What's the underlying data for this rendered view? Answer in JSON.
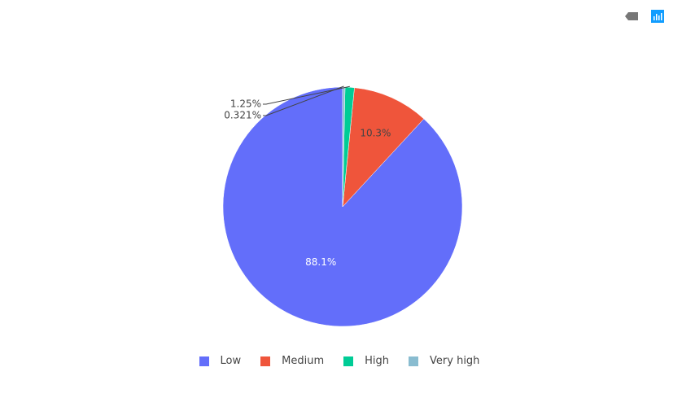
{
  "modebar": {
    "icons": [
      "tag-icon",
      "plotly-chart-icon"
    ]
  },
  "chart_data": {
    "type": "pie",
    "labels": [
      "Low",
      "Medium",
      "High",
      "Very high"
    ],
    "values": [
      88.1,
      10.3,
      1.25,
      0.321
    ],
    "text": [
      "88.1%",
      "10.3%",
      "1.25%",
      "0.321%"
    ],
    "colors": [
      "#636efa",
      "#EF553B",
      "#00cc96",
      "#89BCD0"
    ],
    "direction": "counterclockwise",
    "legend_position": "bottom"
  }
}
